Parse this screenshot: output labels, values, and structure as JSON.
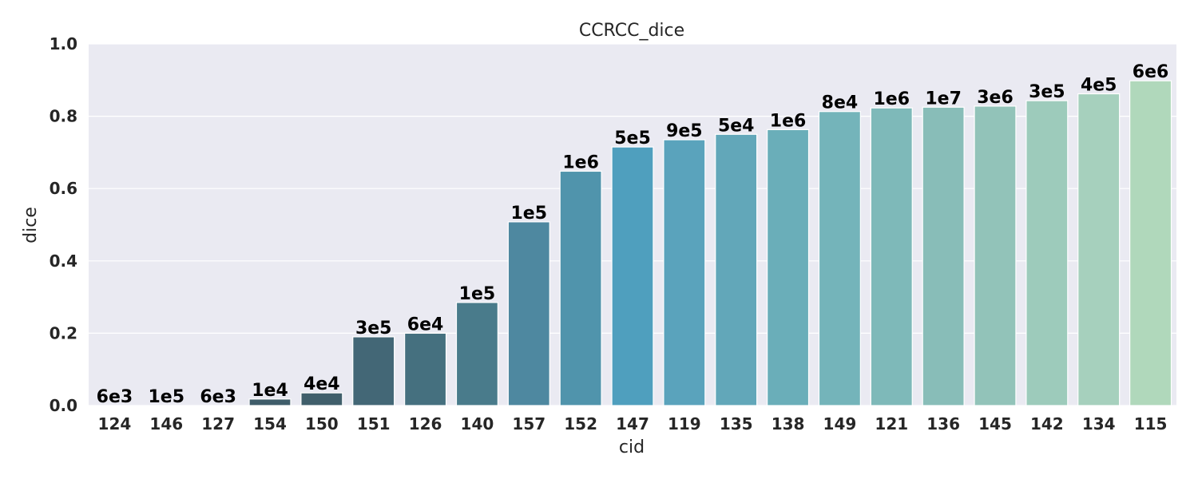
{
  "chart_data": {
    "type": "bar",
    "title": "CCRCC_dice",
    "xlabel": "cid",
    "ylabel": "dice",
    "ylim": [
      0,
      1.0
    ],
    "yticks": [
      "0.0",
      "0.2",
      "0.4",
      "0.6",
      "0.8",
      "1.0"
    ],
    "grid": true,
    "categories": [
      "124",
      "146",
      "127",
      "154",
      "150",
      "151",
      "126",
      "140",
      "157",
      "152",
      "147",
      "119",
      "135",
      "138",
      "149",
      "121",
      "136",
      "145",
      "142",
      "134",
      "115"
    ],
    "values": [
      0.0,
      0.0,
      0.0,
      0.018,
      0.035,
      0.19,
      0.2,
      0.285,
      0.508,
      0.648,
      0.715,
      0.735,
      0.75,
      0.763,
      0.813,
      0.823,
      0.825,
      0.828,
      0.843,
      0.862,
      0.898
    ],
    "bar_labels": [
      "6e3",
      "1e5",
      "6e3",
      "1e4",
      "4e4",
      "3e5",
      "6e4",
      "1e5",
      "1e5",
      "1e6",
      "5e5",
      "9e5",
      "5e4",
      "1e6",
      "8e4",
      "1e6",
      "1e7",
      "3e6",
      "3e5",
      "4e5",
      "6e6"
    ],
    "colors": [
      "#3e5a66",
      "#3e5b67",
      "#3f5c68",
      "#3f5d6a",
      "#405f6b",
      "#436776",
      "#45707f",
      "#497b8b",
      "#4e88a0",
      "#5094ac",
      "#4f9fbe",
      "#5aa3bc",
      "#62a7b9",
      "#6aaeb9",
      "#74b4ba",
      "#7eb9b9",
      "#88bdb8",
      "#92c3b9",
      "#9dcbbb",
      "#a6d0bd",
      "#b0d8bb"
    ],
    "plot_background": "#eaeaf2",
    "grid_color": "#ffffff"
  }
}
